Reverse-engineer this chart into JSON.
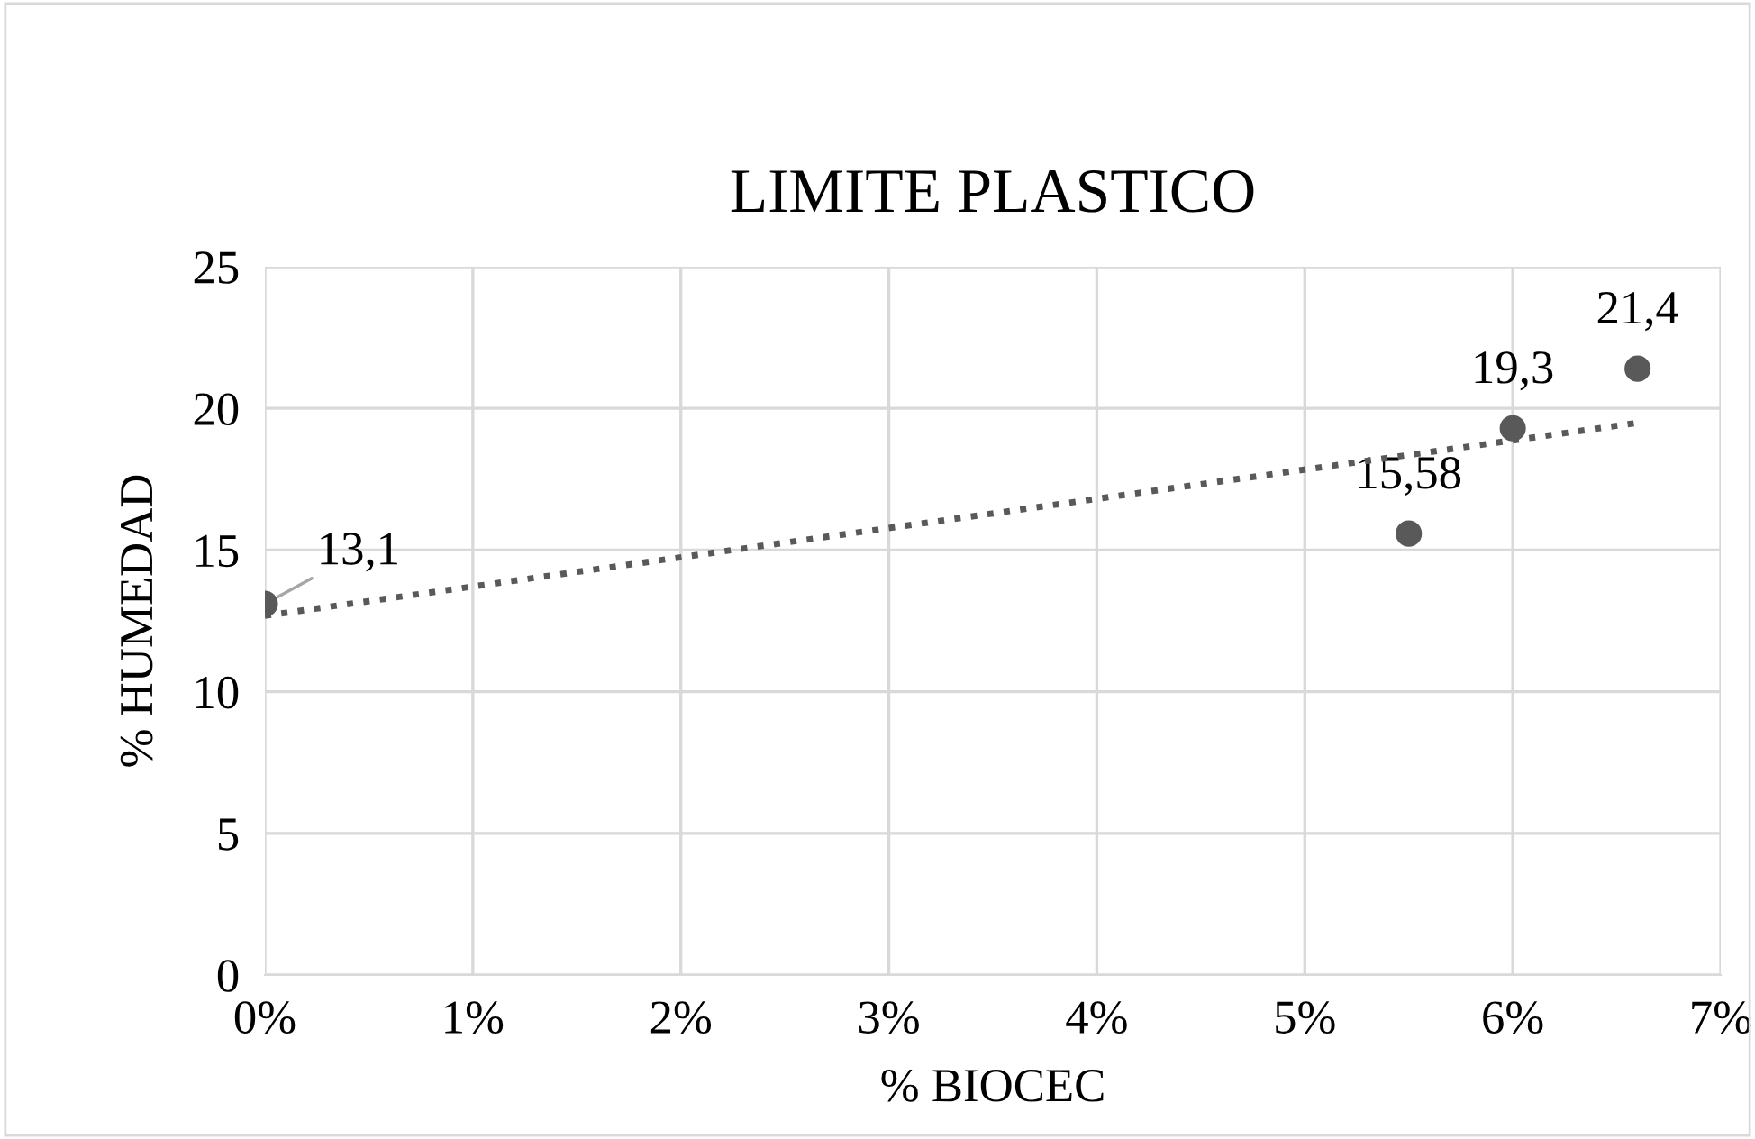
{
  "chart_data": {
    "type": "scatter",
    "title": "LIMITE PLASTICO",
    "xlabel": "% BIOCEC",
    "ylabel": "% HUMEDAD",
    "series": [
      {
        "color": "#595959",
        "x": [
          0,
          5.5,
          6,
          6.6
        ],
        "values": [
          13.1,
          15.58,
          19.3,
          21.4
        ],
        "value_labels": [
          "13,1",
          "15,58",
          "19,3",
          "21,4"
        ],
        "marker": "circle"
      },
      {
        "type": "line",
        "color": "#595959",
        "x": [
          0,
          6.6
        ],
        "values": [
          12.68,
          19.49
        ],
        "line_style": "dotted",
        "marker": "none"
      }
    ],
    "xlim": [
      0,
      7
    ],
    "xticks": [
      {
        "value": 0,
        "label": "0%"
      },
      {
        "value": 1,
        "label": "1%"
      },
      {
        "value": 2,
        "label": "2%"
      },
      {
        "value": 3,
        "label": "3%"
      },
      {
        "value": 4,
        "label": "4%"
      },
      {
        "value": 5,
        "label": "5%"
      },
      {
        "value": 6,
        "label": "6%"
      },
      {
        "value": 7,
        "label": "7%"
      }
    ],
    "ylim": [
      0,
      25
    ],
    "yticks": [
      0,
      5,
      10,
      15,
      20,
      25
    ],
    "grid": true,
    "legend": false
  }
}
